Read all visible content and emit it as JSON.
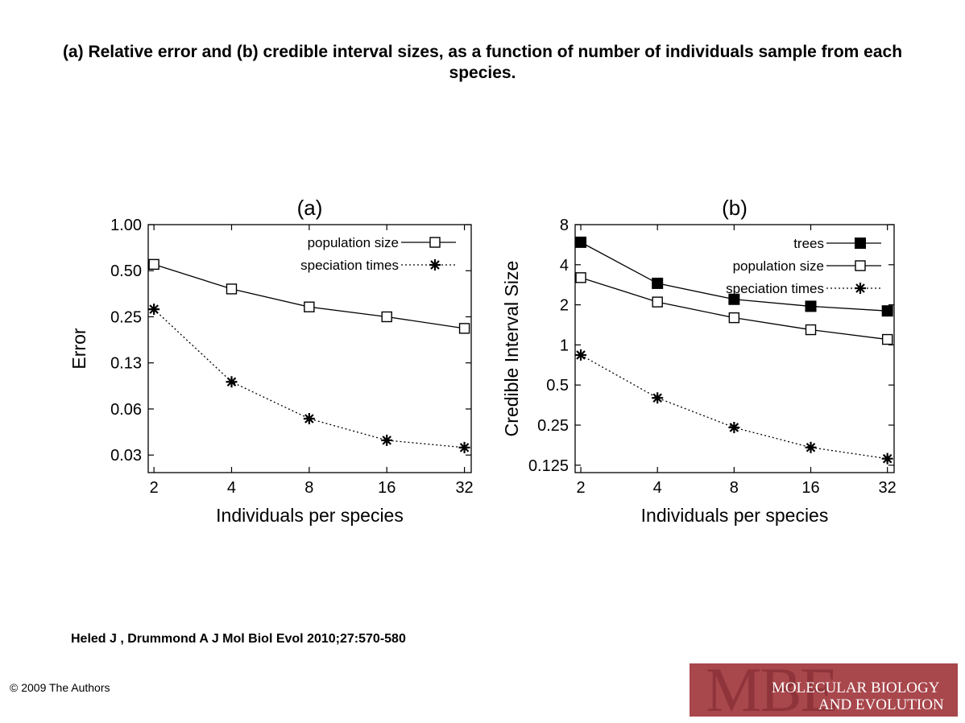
{
  "page": {
    "title": "(a) Relative error and (b) credible interval sizes, as a function of number of individuals sample from each species.",
    "citation": "Heled J , Drummond A J Mol Biol Evol 2010;27:570-580",
    "copyright": "© 2009 The Authors",
    "logo": {
      "mark": "MBE",
      "line1": "MOLECULAR BIOLOGY",
      "line2": "AND EVOLUTION",
      "color": "#a8474c"
    }
  },
  "chart_data": [
    {
      "type": "line",
      "title": "(a)",
      "xlabel": "Individuals per species",
      "ylabel": "Error",
      "x": [
        2,
        4,
        8,
        16,
        32
      ],
      "x_ticks": [
        "2",
        "4",
        "8",
        "16",
        "32"
      ],
      "y_ticks": [
        {
          "value": 1.0,
          "label": "1.00"
        },
        {
          "value": 0.5,
          "label": "0.50"
        },
        {
          "value": 0.25,
          "label": "0.25"
        },
        {
          "value": 0.125,
          "label": "0.13"
        },
        {
          "value": 0.0625,
          "label": "0.06"
        },
        {
          "value": 0.03125,
          "label": "0.03"
        }
      ],
      "x_scale": "log2",
      "y_scale": "log2",
      "xlim": [
        1.9,
        34
      ],
      "ylim": [
        0.024,
        1.0
      ],
      "legend_position": "top-right",
      "grid": false,
      "series": [
        {
          "name": "population size",
          "marker": "open-square",
          "line": "solid",
          "values": [
            0.55,
            0.38,
            0.29,
            0.25,
            0.21
          ]
        },
        {
          "name": "speciation times",
          "marker": "asterisk",
          "line": "dotted",
          "values": [
            0.28,
            0.094,
            0.054,
            0.039,
            0.035
          ]
        }
      ]
    },
    {
      "type": "line",
      "title": "(b)",
      "xlabel": "Individuals per species",
      "ylabel": "Credible Interval Size",
      "x": [
        2,
        4,
        8,
        16,
        32
      ],
      "x_ticks": [
        "2",
        "4",
        "8",
        "16",
        "32"
      ],
      "y_ticks": [
        {
          "value": 8,
          "label": "8"
        },
        {
          "value": 4,
          "label": "4"
        },
        {
          "value": 2,
          "label": "2"
        },
        {
          "value": 1,
          "label": "1"
        },
        {
          "value": 0.5,
          "label": "0.5"
        },
        {
          "value": 0.25,
          "label": "0.25"
        },
        {
          "value": 0.125,
          "label": "0.125"
        }
      ],
      "x_scale": "log2",
      "y_scale": "log2",
      "xlim": [
        1.9,
        34
      ],
      "ylim": [
        0.11,
        8
      ],
      "legend_position": "top-right",
      "grid": false,
      "series": [
        {
          "name": "trees",
          "marker": "filled-square",
          "line": "solid",
          "values": [
            5.9,
            2.9,
            2.2,
            1.95,
            1.8
          ]
        },
        {
          "name": "population size",
          "marker": "open-square",
          "line": "solid",
          "values": [
            3.2,
            2.1,
            1.6,
            1.3,
            1.1
          ]
        },
        {
          "name": "speciation times",
          "marker": "asterisk",
          "line": "dotted",
          "values": [
            0.84,
            0.4,
            0.24,
            0.17,
            0.14
          ]
        }
      ]
    }
  ]
}
